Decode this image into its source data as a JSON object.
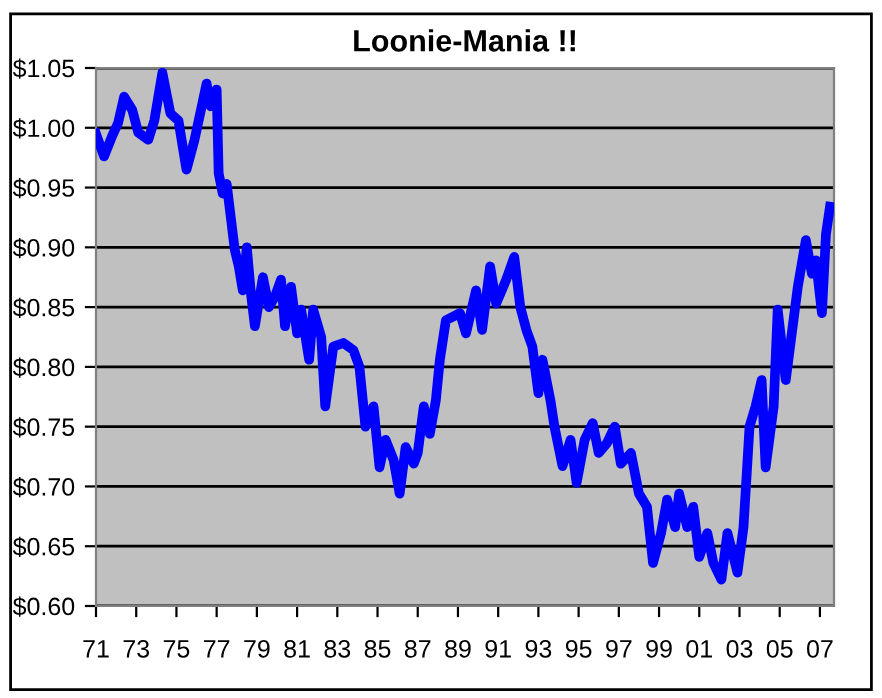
{
  "chart_data": {
    "type": "line",
    "title": "Loonie-Mania !!",
    "grid": "y",
    "marker": "none",
    "line_style": "solid",
    "xlim": [
      1971,
      2007.7
    ],
    "ylim": [
      0.6,
      1.05
    ],
    "xticks": [
      {
        "value": 1971,
        "label": "71"
      },
      {
        "value": 1973,
        "label": "73"
      },
      {
        "value": 1975,
        "label": "75"
      },
      {
        "value": 1977,
        "label": "77"
      },
      {
        "value": 1979,
        "label": "79"
      },
      {
        "value": 1981,
        "label": "81"
      },
      {
        "value": 1983,
        "label": "83"
      },
      {
        "value": 1985,
        "label": "85"
      },
      {
        "value": 1987,
        "label": "87"
      },
      {
        "value": 1989,
        "label": "89"
      },
      {
        "value": 1991,
        "label": "91"
      },
      {
        "value": 1993,
        "label": "93"
      },
      {
        "value": 1995,
        "label": "95"
      },
      {
        "value": 1997,
        "label": "97"
      },
      {
        "value": 1999,
        "label": "99"
      },
      {
        "value": 2001,
        "label": "01"
      },
      {
        "value": 2003,
        "label": "03"
      },
      {
        "value": 2005,
        "label": "05"
      },
      {
        "value": 2007,
        "label": "07"
      }
    ],
    "yticks": [
      {
        "value": 0.6,
        "label": "$0.60"
      },
      {
        "value": 0.65,
        "label": "$0.65"
      },
      {
        "value": 0.7,
        "label": "$0.70"
      },
      {
        "value": 0.75,
        "label": "$0.75"
      },
      {
        "value": 0.8,
        "label": "$0.80"
      },
      {
        "value": 0.85,
        "label": "$0.85"
      },
      {
        "value": 0.9,
        "label": "$0.90"
      },
      {
        "value": 0.95,
        "label": "$0.95"
      },
      {
        "value": 1.0,
        "label": "$1.00"
      },
      {
        "value": 1.05,
        "label": "$1.05"
      }
    ],
    "x": [
      1971.0,
      1971.4,
      1971.8,
      1972.1,
      1972.4,
      1972.8,
      1973.1,
      1973.6,
      1973.9,
      1974.3,
      1974.7,
      1975.1,
      1975.5,
      1975.9,
      1976.5,
      1976.7,
      1977.0,
      1977.1,
      1977.3,
      1977.5,
      1977.9,
      1978.1,
      1978.3,
      1978.5,
      1978.7,
      1978.9,
      1979.3,
      1979.6,
      1979.9,
      1980.2,
      1980.4,
      1980.7,
      1981.0,
      1981.2,
      1981.6,
      1981.8,
      1982.2,
      1982.4,
      1982.8,
      1983.3,
      1983.8,
      1984.1,
      1984.4,
      1984.8,
      1985.1,
      1985.4,
      1985.8,
      1986.1,
      1986.4,
      1986.8,
      1987.0,
      1987.3,
      1987.6,
      1987.9,
      1988.1,
      1988.4,
      1989.1,
      1989.4,
      1989.9,
      1990.2,
      1990.6,
      1990.9,
      1991.4,
      1991.8,
      1992.1,
      1992.4,
      1992.7,
      1993.0,
      1993.2,
      1993.6,
      1993.8,
      1994.2,
      1994.6,
      1994.9,
      1995.3,
      1995.7,
      1996.0,
      1996.4,
      1996.8,
      1997.1,
      1997.6,
      1998.0,
      1998.4,
      1998.7,
      1999.1,
      1999.4,
      1999.8,
      2000.0,
      2000.4,
      2000.7,
      2001.0,
      2001.4,
      2001.7,
      2002.1,
      2002.4,
      2002.9,
      2003.2,
      2003.5,
      2003.8,
      2004.1,
      2004.3,
      2004.7,
      2004.9,
      2005.3,
      2005.6,
      2005.9,
      2006.3,
      2006.6,
      2006.8,
      2007.1,
      2007.3,
      2007.5
    ],
    "series": [
      {
        "color": "#0000ff",
        "values": [
          0.995,
          0.976,
          0.993,
          1.004,
          1.026,
          1.015,
          0.996,
          0.99,
          1.006,
          1.046,
          1.012,
          1.006,
          0.965,
          0.99,
          1.037,
          1.018,
          1.032,
          0.962,
          0.945,
          0.953,
          0.898,
          0.884,
          0.864,
          0.9,
          0.862,
          0.834,
          0.875,
          0.85,
          0.859,
          0.873,
          0.834,
          0.867,
          0.828,
          0.848,
          0.806,
          0.848,
          0.825,
          0.767,
          0.817,
          0.82,
          0.814,
          0.8,
          0.75,
          0.767,
          0.716,
          0.739,
          0.722,
          0.694,
          0.733,
          0.719,
          0.728,
          0.767,
          0.744,
          0.772,
          0.806,
          0.839,
          0.845,
          0.828,
          0.864,
          0.831,
          0.884,
          0.853,
          0.873,
          0.892,
          0.85,
          0.831,
          0.817,
          0.778,
          0.806,
          0.772,
          0.75,
          0.717,
          0.739,
          0.703,
          0.739,
          0.753,
          0.728,
          0.736,
          0.75,
          0.719,
          0.728,
          0.694,
          0.683,
          0.636,
          0.661,
          0.689,
          0.666,
          0.694,
          0.666,
          0.683,
          0.641,
          0.661,
          0.636,
          0.622,
          0.661,
          0.628,
          0.666,
          0.75,
          0.767,
          0.789,
          0.716,
          0.767,
          0.848,
          0.789,
          0.828,
          0.867,
          0.906,
          0.878,
          0.889,
          0.845,
          0.911,
          0.934
        ]
      }
    ]
  }
}
